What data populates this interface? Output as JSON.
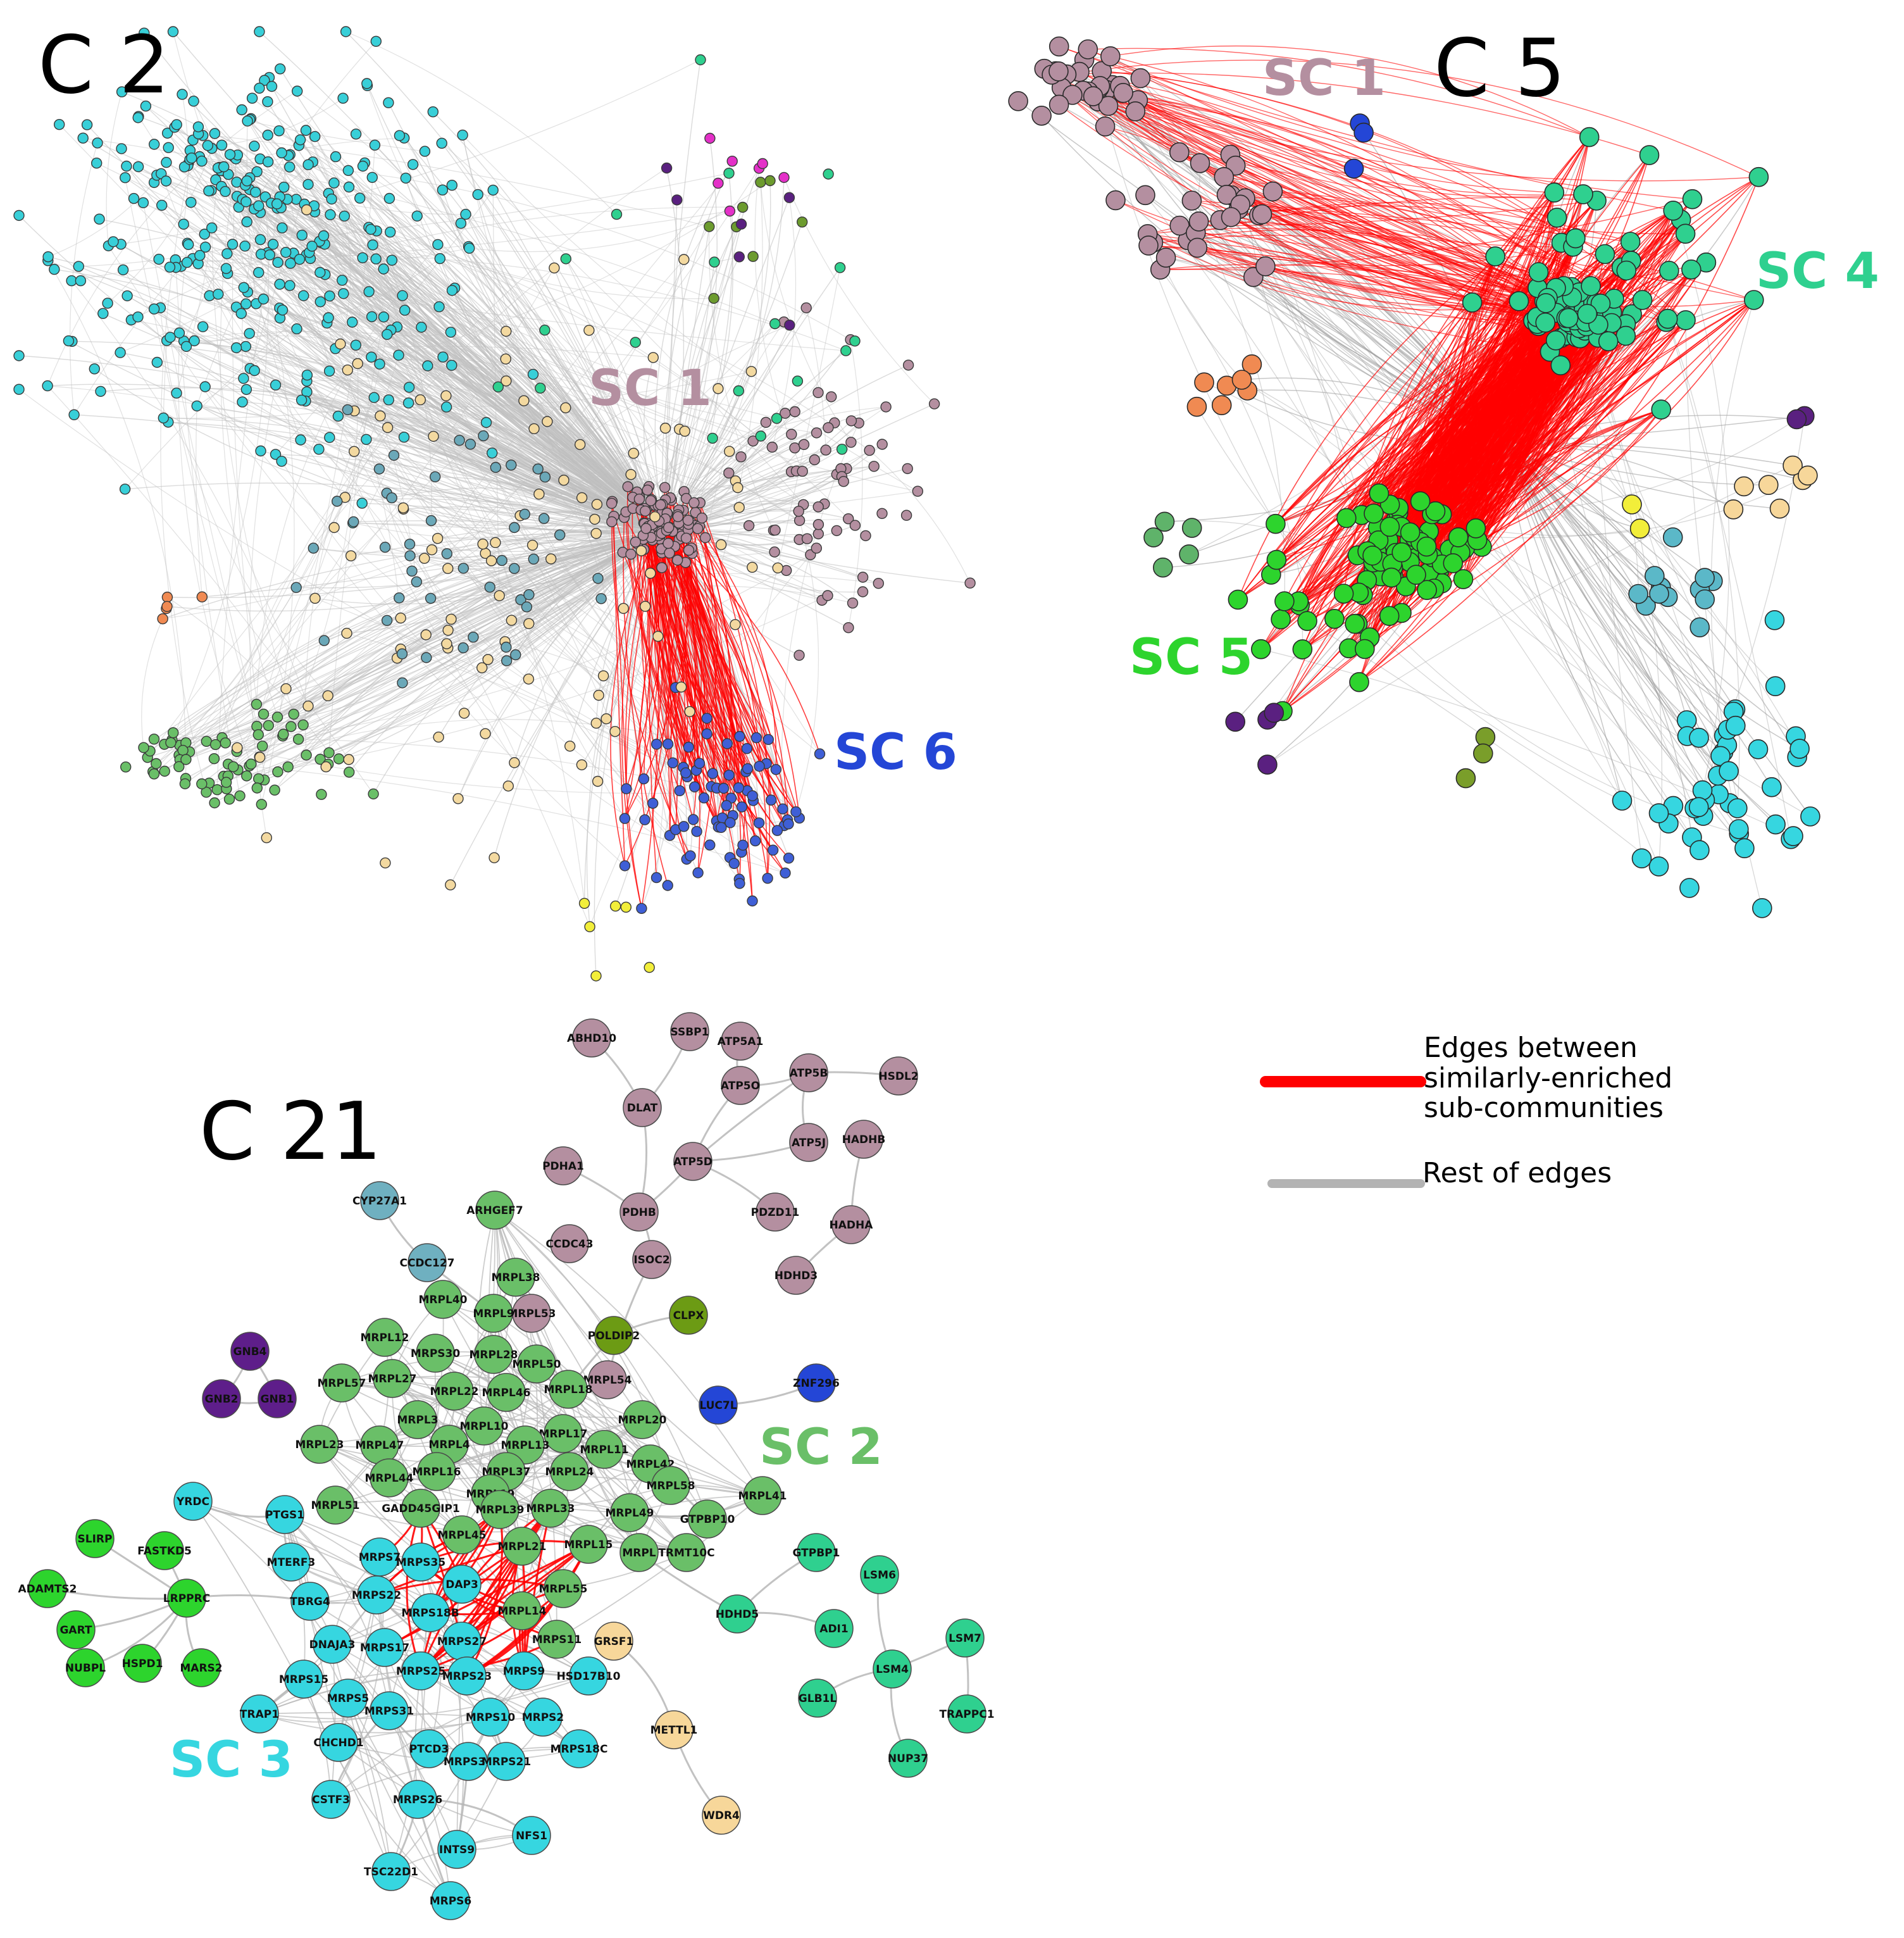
{
  "panels": [
    {
      "id": "c2",
      "title": "C 2"
    },
    {
      "id": "c5",
      "title": "C 5"
    },
    {
      "id": "c21",
      "title": "C 21"
    }
  ],
  "colors": {
    "sc1_mauve": "#b48fa0",
    "sc6_blue": "#2446d6",
    "sc4_teal": "#2fd08f",
    "sc5_green": "#2dd42d",
    "sc2_green": "#6abf68",
    "sc3_cyan": "#36d6e0",
    "enriched_edge": "#ff0000",
    "rest_edge": "#b3b3b3"
  },
  "sc_labels": {
    "c2_sc1": "SC 1",
    "c2_sc6": "SC 6",
    "c5_sc1": "SC 1",
    "c5_sc4": "SC 4",
    "c5_sc5": "SC 5",
    "c21_sc2": "SC 2",
    "c21_sc3": "SC 3"
  },
  "legend": {
    "enriched": "Edges between\nsimilarly-enriched\nsub-communities",
    "rest": "Rest of edges"
  },
  "c21_nodes": [
    {
      "label": "ABHD10",
      "group": "mauve"
    },
    {
      "label": "SSBP1",
      "group": "mauve"
    },
    {
      "label": "ATP5A1",
      "group": "mauve"
    },
    {
      "label": "ATP5O",
      "group": "mauve"
    },
    {
      "label": "ATP5B",
      "group": "mauve"
    },
    {
      "label": "HSDL2",
      "group": "mauve"
    },
    {
      "label": "DLAT",
      "group": "mauve"
    },
    {
      "label": "HADHB",
      "group": "mauve"
    },
    {
      "label": "ATP5J",
      "group": "mauve"
    },
    {
      "label": "ATP5D",
      "group": "mauve"
    },
    {
      "label": "PDHA1",
      "group": "mauve"
    },
    {
      "label": "PDHB",
      "group": "mauve"
    },
    {
      "label": "PDZD11",
      "group": "mauve"
    },
    {
      "label": "HADHA",
      "group": "mauve"
    },
    {
      "label": "CCDC43",
      "group": "mauve"
    },
    {
      "label": "ISOC2",
      "group": "mauve"
    },
    {
      "label": "HDHD3",
      "group": "mauve"
    },
    {
      "label": "MRPL53",
      "group": "mauve"
    },
    {
      "label": "MRPL54",
      "group": "mauve"
    },
    {
      "label": "CYP27A1",
      "group": "steel"
    },
    {
      "label": "CCDC127",
      "group": "steel"
    },
    {
      "label": "ARHGEF7",
      "group": "green2"
    },
    {
      "label": "MRPL38",
      "group": "green2"
    },
    {
      "label": "MRPL40",
      "group": "green2"
    },
    {
      "label": "MRPL9",
      "group": "green2"
    },
    {
      "label": "POLDIP2",
      "group": "olive"
    },
    {
      "label": "CLPX",
      "group": "olive"
    },
    {
      "label": "GNB4",
      "group": "purple"
    },
    {
      "label": "GNB2",
      "group": "purple"
    },
    {
      "label": "GNB1",
      "group": "purple"
    },
    {
      "label": "MRPL12",
      "group": "green2"
    },
    {
      "label": "MRPS30",
      "group": "green2"
    },
    {
      "label": "MRPL28",
      "group": "green2"
    },
    {
      "label": "MRPL50",
      "group": "green2"
    },
    {
      "label": "MRPL57",
      "group": "green2"
    },
    {
      "label": "MRPL27",
      "group": "green2"
    },
    {
      "label": "MRPL18",
      "group": "green2"
    },
    {
      "label": "ZNF296",
      "group": "blue"
    },
    {
      "label": "LUC7L",
      "group": "blue"
    },
    {
      "label": "MRPL22",
      "group": "green2"
    },
    {
      "label": "MRPL46",
      "group": "green2"
    },
    {
      "label": "MRPL3",
      "group": "green2"
    },
    {
      "label": "MRPL20",
      "group": "green2"
    },
    {
      "label": "MRPL10",
      "group": "green2"
    },
    {
      "label": "MRPL17",
      "group": "green2"
    },
    {
      "label": "MRPL23",
      "group": "green2"
    },
    {
      "label": "MRPL47",
      "group": "green2"
    },
    {
      "label": "MRPL4",
      "group": "green2"
    },
    {
      "label": "MRPL13",
      "group": "green2"
    },
    {
      "label": "MRPL11",
      "group": "green2"
    },
    {
      "label": "MRPL42",
      "group": "green2"
    },
    {
      "label": "MRPL16",
      "group": "green2"
    },
    {
      "label": "MRPL37",
      "group": "green2"
    },
    {
      "label": "MRPL24",
      "group": "green2"
    },
    {
      "label": "MRPL44",
      "group": "green2"
    },
    {
      "label": "MRPL19",
      "group": "green2"
    },
    {
      "label": "MRPL58",
      "group": "green2"
    },
    {
      "label": "MRPL41",
      "group": "green2"
    },
    {
      "label": "MRPL51",
      "group": "green2"
    },
    {
      "label": "GADD45GIP1",
      "group": "green2"
    },
    {
      "label": "MRPL39",
      "group": "green2"
    },
    {
      "label": "MRPL33",
      "group": "green2"
    },
    {
      "label": "MRPL49",
      "group": "green2"
    },
    {
      "label": "GTPBP10",
      "group": "green2"
    },
    {
      "label": "YRDC",
      "group": "cyan"
    },
    {
      "label": "PTGS1",
      "group": "cyan"
    },
    {
      "label": "MRPL45",
      "group": "green2"
    },
    {
      "label": "MRPL21",
      "group": "green2"
    },
    {
      "label": "MRPL15",
      "group": "green2"
    },
    {
      "label": "MRPL",
      "group": "green2"
    },
    {
      "label": "TRMT10C",
      "group": "green2"
    },
    {
      "label": "GTPBP1",
      "group": "teal"
    },
    {
      "label": "SLIRP",
      "group": "lime"
    },
    {
      "label": "FASTKD5",
      "group": "lime"
    },
    {
      "label": "MTERF3",
      "group": "cyan"
    },
    {
      "label": "MRPS7",
      "group": "cyan"
    },
    {
      "label": "MRPS35",
      "group": "cyan"
    },
    {
      "label": "DAP3",
      "group": "cyan"
    },
    {
      "label": "MRPL55",
      "group": "green2"
    },
    {
      "label": "ADAMTS2",
      "group": "lime"
    },
    {
      "label": "LRPPRC",
      "group": "lime"
    },
    {
      "label": "TBRG4",
      "group": "cyan"
    },
    {
      "label": "MRPS22",
      "group": "cyan"
    },
    {
      "label": "MRPS18B",
      "group": "cyan"
    },
    {
      "label": "MRPL14",
      "group": "green2"
    },
    {
      "label": "HDHD5",
      "group": "teal"
    },
    {
      "label": "LSM6",
      "group": "teal"
    },
    {
      "label": "LSM7",
      "group": "teal"
    },
    {
      "label": "GART",
      "group": "lime"
    },
    {
      "label": "DNAJA3",
      "group": "cyan"
    },
    {
      "label": "MRPS17",
      "group": "cyan"
    },
    {
      "label": "MRPS27",
      "group": "cyan"
    },
    {
      "label": "MRPS11",
      "group": "green2"
    },
    {
      "label": "GRSF1",
      "group": "wheat"
    },
    {
      "label": "ADI1",
      "group": "teal"
    },
    {
      "label": "NUBPL",
      "group": "lime"
    },
    {
      "label": "HSPD1",
      "group": "lime"
    },
    {
      "label": "MARS2",
      "group": "lime"
    },
    {
      "label": "MRPS15",
      "group": "cyan"
    },
    {
      "label": "MRPS25",
      "group": "cyan"
    },
    {
      "label": "MRPS23",
      "group": "cyan"
    },
    {
      "label": "MRPS9",
      "group": "cyan"
    },
    {
      "label": "HSD17B10",
      "group": "cyan"
    },
    {
      "label": "LSM4",
      "group": "teal"
    },
    {
      "label": "MRPS5",
      "group": "cyan"
    },
    {
      "label": "TRAP1",
      "group": "cyan"
    },
    {
      "label": "MRPS31",
      "group": "cyan"
    },
    {
      "label": "MRPS10",
      "group": "cyan"
    },
    {
      "label": "MRPS2",
      "group": "cyan"
    },
    {
      "label": "GLB1L",
      "group": "teal"
    },
    {
      "label": "TRAPPC1",
      "group": "teal"
    },
    {
      "label": "CHCHD1",
      "group": "cyan"
    },
    {
      "label": "PTCD3",
      "group": "cyan"
    },
    {
      "label": "MRPS34",
      "group": "cyan"
    },
    {
      "label": "MRPS21",
      "group": "cyan"
    },
    {
      "label": "MRPS18C",
      "group": "cyan"
    },
    {
      "label": "METTL1",
      "group": "wheat"
    },
    {
      "label": "NUP37",
      "group": "teal"
    },
    {
      "label": "CSTF3",
      "group": "cyan"
    },
    {
      "label": "MRPS26",
      "group": "cyan"
    },
    {
      "label": "NFS1",
      "group": "cyan"
    },
    {
      "label": "WDR4",
      "group": "wheat"
    },
    {
      "label": "INTS9",
      "group": "cyan"
    },
    {
      "label": "TSC22D1",
      "group": "cyan"
    },
    {
      "label": "MRPS6",
      "group": "cyan"
    }
  ]
}
